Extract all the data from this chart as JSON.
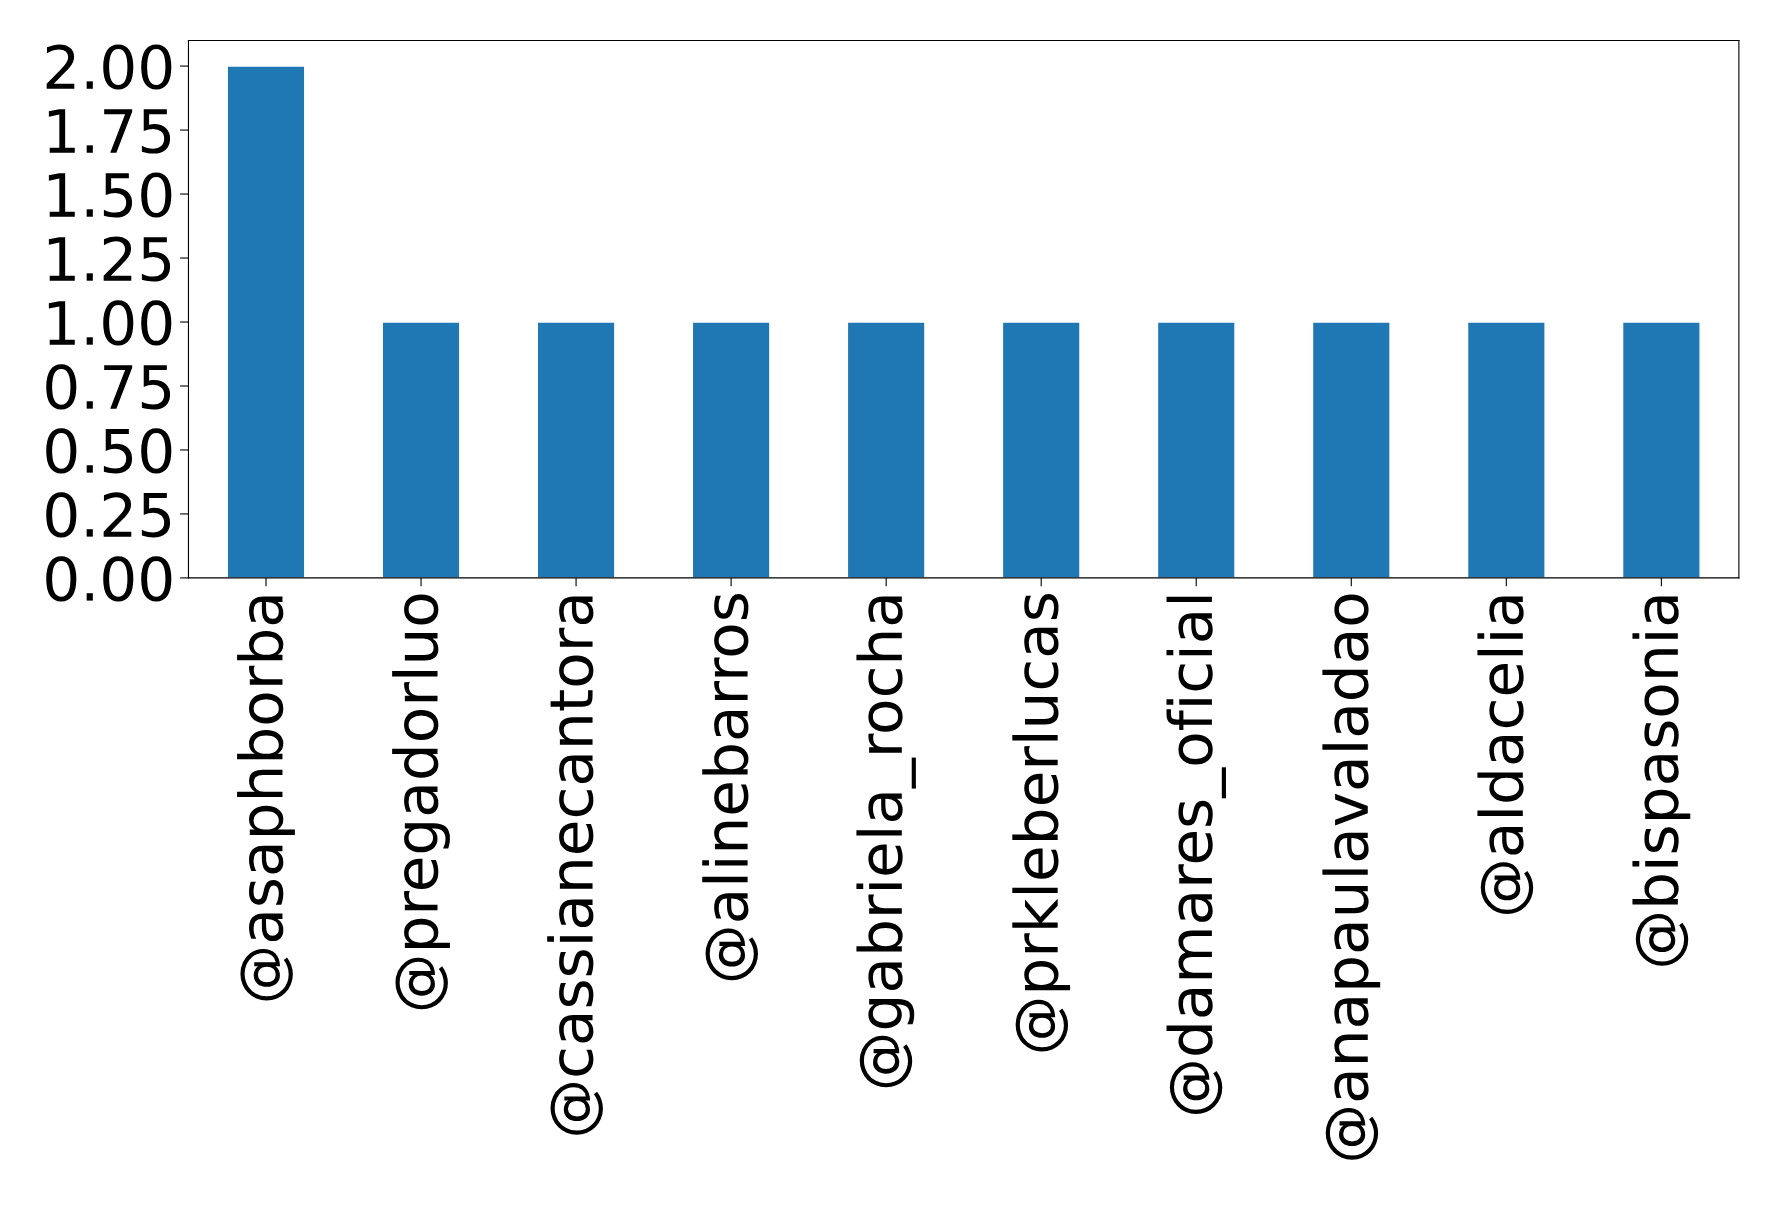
{
  "chart_data": {
    "type": "bar",
    "categories": [
      "@asaphborba",
      "@pregadorluo",
      "@cassianecantora",
      "@alinebarros",
      "@gabriela_rocha",
      "@prkleberlucas",
      "@damares_oficial",
      "@anapaulavaladao",
      "@aldacelia",
      "@bispasonia"
    ],
    "values": [
      2,
      1,
      1,
      1,
      1,
      1,
      1,
      1,
      1,
      1
    ],
    "color": "#1f77b4",
    "ylim": [
      0,
      2.1
    ],
    "yticks": [
      {
        "value": 0,
        "label": "0.00"
      },
      {
        "value": 0.25,
        "label": "0.25"
      },
      {
        "value": 0.5,
        "label": "0.50"
      },
      {
        "value": 0.75,
        "label": "0.75"
      },
      {
        "value": 1,
        "label": "1.00"
      },
      {
        "value": 1.25,
        "label": "1.25"
      },
      {
        "value": 1.5,
        "label": "1.50"
      },
      {
        "value": 1.75,
        "label": "1.75"
      },
      {
        "value": 2,
        "label": "2.00"
      }
    ],
    "grid": false,
    "legend": false
  }
}
